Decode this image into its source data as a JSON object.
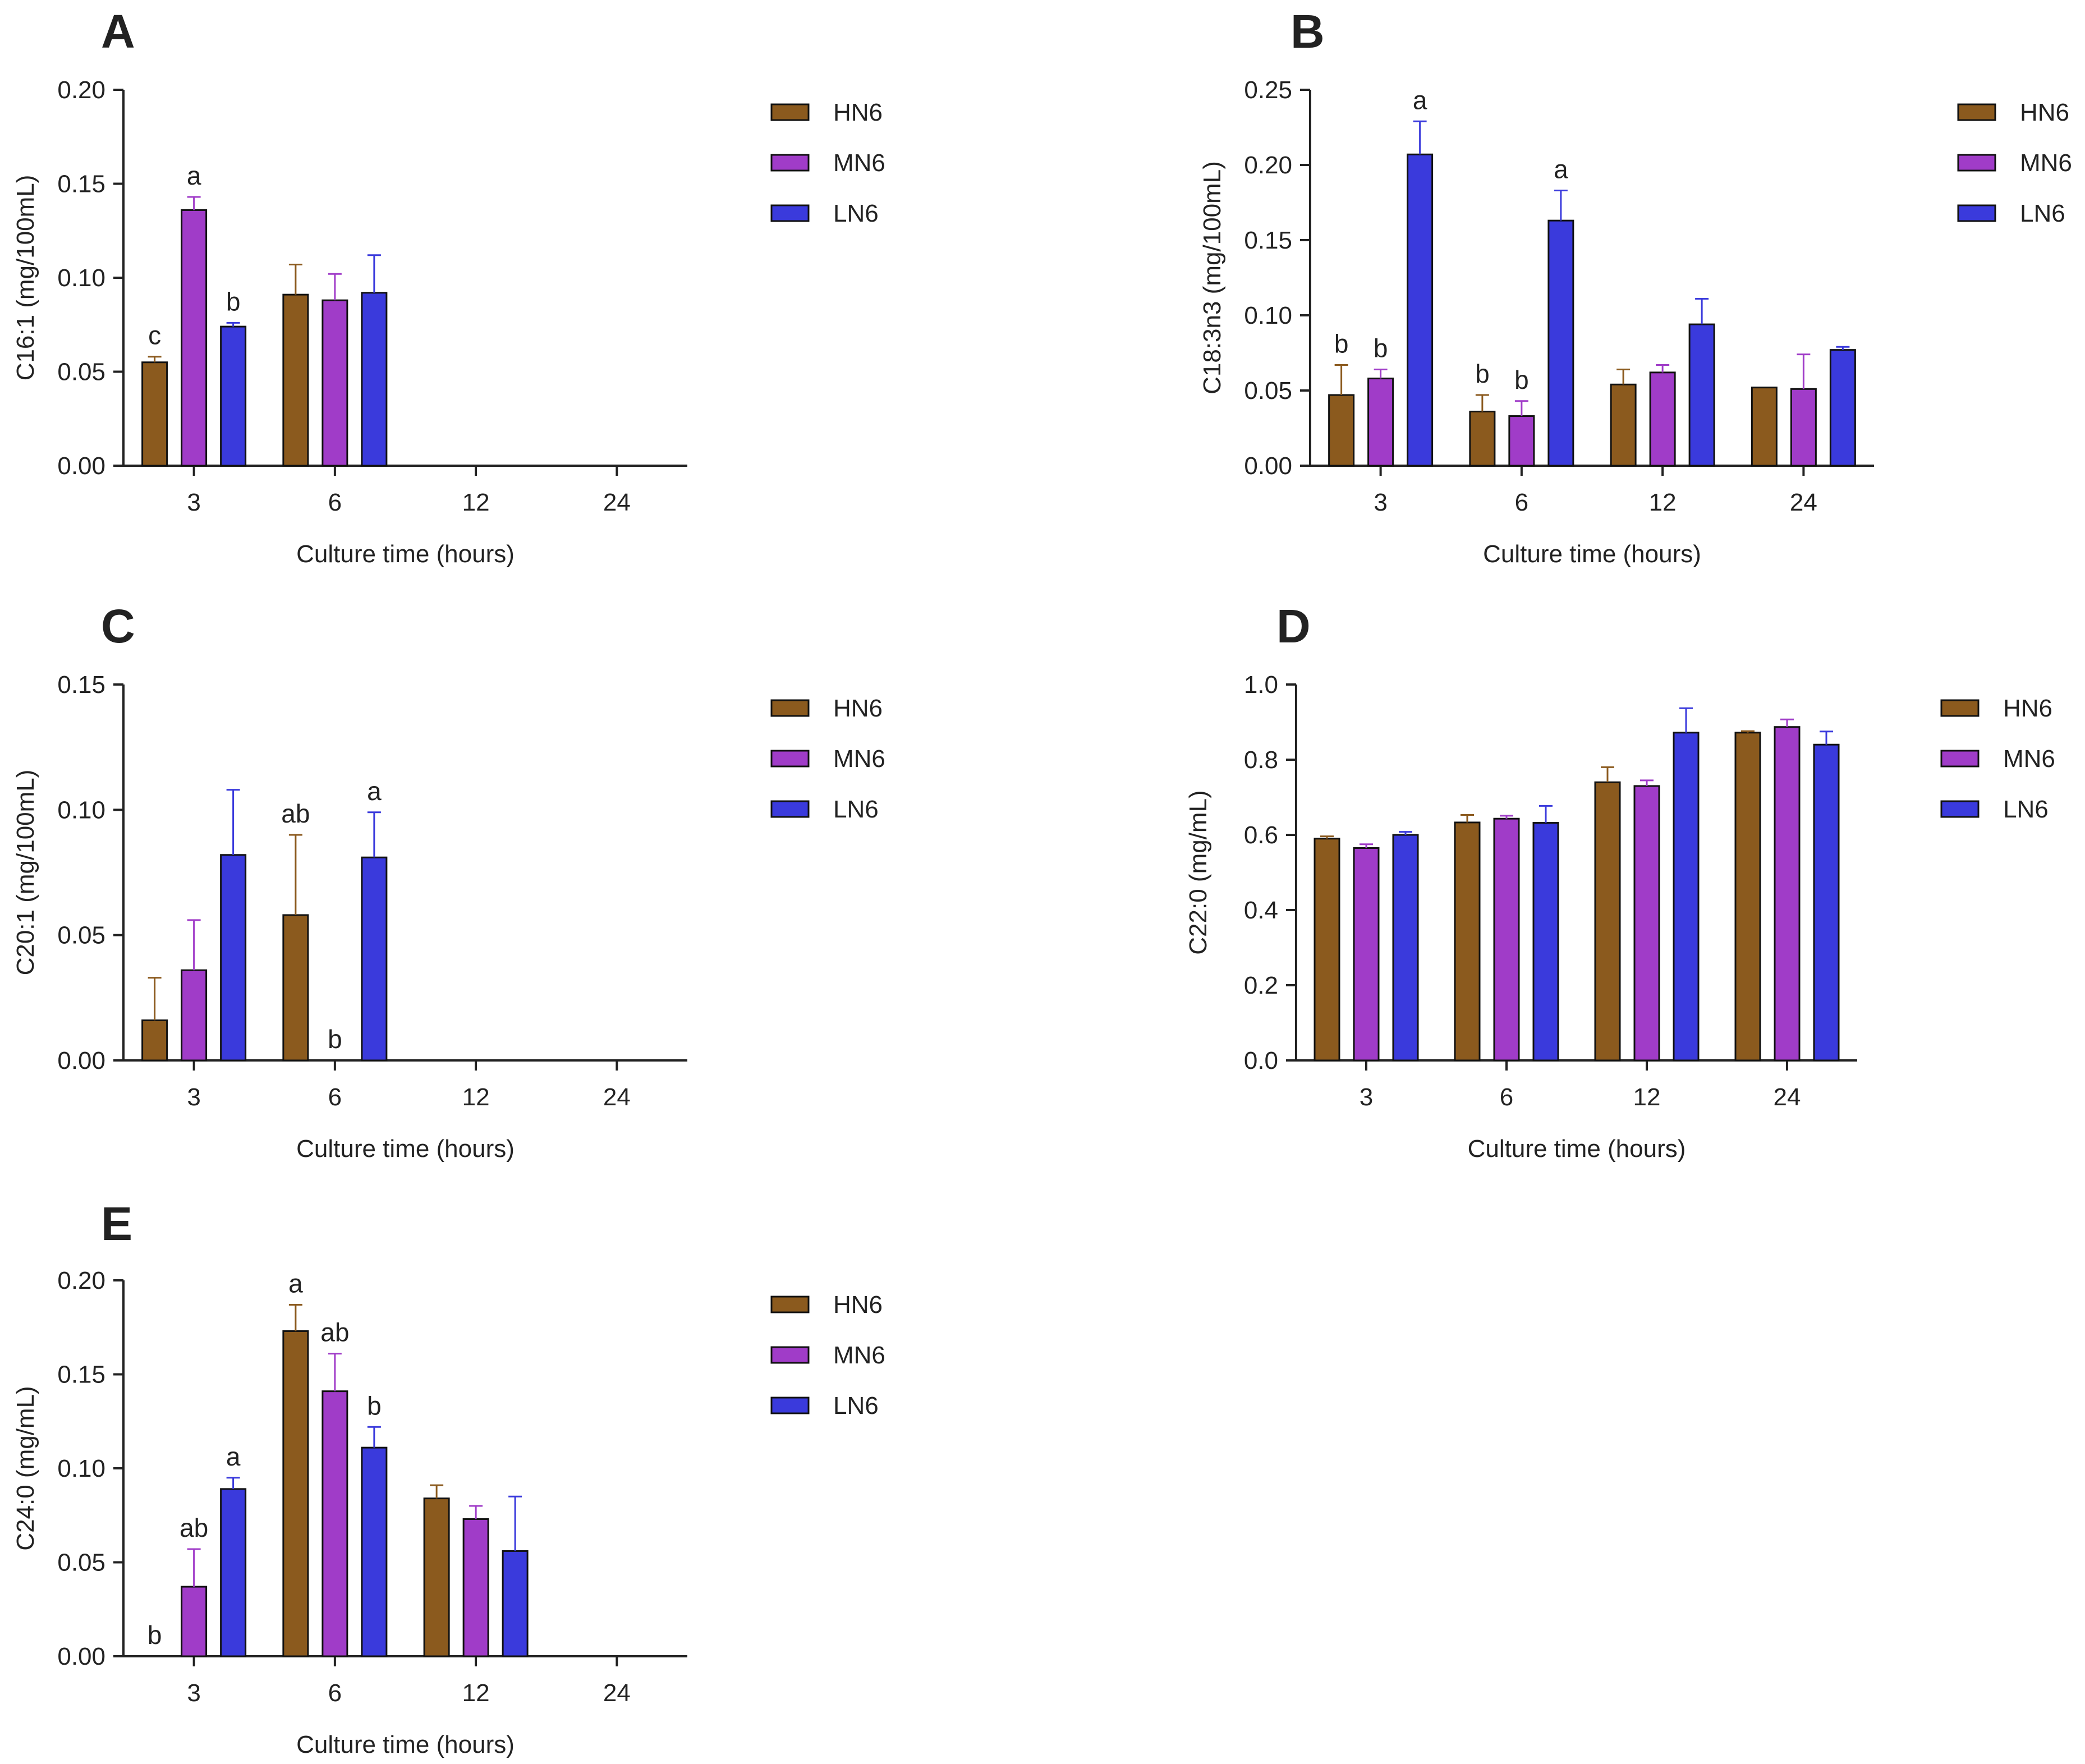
{
  "colors": {
    "HN6": "#8B5A1E",
    "MN6": "#A03CC8",
    "LN6": "#3A3ADC",
    "axis": "#222222"
  },
  "chart_data": [
    {
      "panel": "A",
      "type": "bar",
      "categories": [
        "3",
        "6",
        "12",
        "24"
      ],
      "xlabel": "Culture time (hours)",
      "ylabel": "C16:1 (mg/100mL)",
      "ylim": [
        0,
        0.2
      ],
      "yticks": [
        "0.00",
        "0.05",
        "0.10",
        "0.15",
        "0.20"
      ],
      "legend": "right",
      "series": [
        {
          "name": "HN6",
          "values": [
            0.055,
            0.091,
            null,
            null
          ],
          "errors": [
            0.003,
            0.016,
            null,
            null
          ],
          "labels": [
            "c",
            "",
            "",
            ""
          ]
        },
        {
          "name": "MN6",
          "values": [
            0.136,
            0.088,
            null,
            null
          ],
          "errors": [
            0.007,
            0.014,
            null,
            null
          ],
          "labels": [
            "a",
            "",
            "",
            ""
          ]
        },
        {
          "name": "LN6",
          "values": [
            0.074,
            0.092,
            null,
            null
          ],
          "errors": [
            0.002,
            0.02,
            null,
            null
          ],
          "labels": [
            "b",
            "",
            "",
            ""
          ]
        }
      ]
    },
    {
      "panel": "B",
      "type": "bar",
      "categories": [
        "3",
        "6",
        "12",
        "24"
      ],
      "xlabel": "Culture time (hours)",
      "ylabel": "C18:3n3 (mg/100mL)",
      "ylim": [
        0,
        0.25
      ],
      "yticks": [
        "0.00",
        "0.05",
        "0.10",
        "0.15",
        "0.20",
        "0.25"
      ],
      "legend": "right",
      "series": [
        {
          "name": "HN6",
          "values": [
            0.047,
            0.036,
            0.054,
            0.052
          ],
          "errors": [
            0.02,
            0.011,
            0.01,
            0.0
          ],
          "labels": [
            "b",
            "b",
            "",
            ""
          ]
        },
        {
          "name": "MN6",
          "values": [
            0.058,
            0.033,
            0.062,
            0.051
          ],
          "errors": [
            0.006,
            0.01,
            0.005,
            0.023
          ],
          "labels": [
            "b",
            "b",
            "",
            ""
          ]
        },
        {
          "name": "LN6",
          "values": [
            0.207,
            0.163,
            0.094,
            0.077
          ],
          "errors": [
            0.022,
            0.02,
            0.017,
            0.002
          ],
          "labels": [
            "a",
            "a",
            "",
            ""
          ]
        }
      ]
    },
    {
      "panel": "C",
      "type": "bar",
      "categories": [
        "3",
        "6",
        "12",
        "24"
      ],
      "xlabel": "Culture time (hours)",
      "ylabel": "C20:1 (mg/100mL)",
      "ylim": [
        0,
        0.15
      ],
      "yticks": [
        "0.00",
        "0.05",
        "0.10",
        "0.15"
      ],
      "legend": "right",
      "series": [
        {
          "name": "HN6",
          "values": [
            0.016,
            0.058,
            null,
            null
          ],
          "errors": [
            0.017,
            0.032,
            null,
            null
          ],
          "labels": [
            "",
            "ab",
            "",
            ""
          ]
        },
        {
          "name": "MN6",
          "values": [
            0.036,
            0.0,
            null,
            null
          ],
          "errors": [
            0.02,
            0.0,
            null,
            null
          ],
          "labels": [
            "",
            "b",
            "",
            ""
          ]
        },
        {
          "name": "LN6",
          "values": [
            0.082,
            0.081,
            null,
            null
          ],
          "errors": [
            0.026,
            0.018,
            null,
            null
          ],
          "labels": [
            "",
            "a",
            "",
            ""
          ]
        }
      ]
    },
    {
      "panel": "D",
      "type": "bar",
      "categories": [
        "3",
        "6",
        "12",
        "24"
      ],
      "xlabel": "Culture time (hours)",
      "ylabel": "C22:0 (mg/mL)",
      "ylim": [
        0,
        1.0
      ],
      "yticks": [
        "0.0",
        "0.2",
        "0.4",
        "0.6",
        "0.8",
        "1.0"
      ],
      "legend": "right",
      "series": [
        {
          "name": "HN6",
          "values": [
            0.59,
            0.633,
            0.74,
            0.872
          ],
          "errors": [
            0.006,
            0.02,
            0.04,
            0.004
          ],
          "labels": [
            "",
            "",
            "",
            ""
          ]
        },
        {
          "name": "MN6",
          "values": [
            0.565,
            0.643,
            0.73,
            0.887
          ],
          "errors": [
            0.01,
            0.008,
            0.015,
            0.02
          ],
          "labels": [
            "",
            "",
            "",
            ""
          ]
        },
        {
          "name": "LN6",
          "values": [
            0.6,
            0.632,
            0.872,
            0.84
          ],
          "errors": [
            0.008,
            0.045,
            0.065,
            0.035
          ],
          "labels": [
            "",
            "",
            "",
            ""
          ]
        }
      ]
    },
    {
      "panel": "E",
      "type": "bar",
      "categories": [
        "3",
        "6",
        "12",
        "24"
      ],
      "xlabel": "Culture time (hours)",
      "ylabel": "C24:0 (mg/mL)",
      "ylim": [
        0,
        0.2
      ],
      "yticks": [
        "0.00",
        "0.05",
        "0.10",
        "0.15",
        "0.20"
      ],
      "legend": "right",
      "series": [
        {
          "name": "HN6",
          "values": [
            0.0,
            0.173,
            0.084,
            null
          ],
          "errors": [
            0.0,
            0.014,
            0.007,
            null
          ],
          "labels": [
            "b",
            "a",
            "",
            ""
          ]
        },
        {
          "name": "MN6",
          "values": [
            0.037,
            0.141,
            0.073,
            null
          ],
          "errors": [
            0.02,
            0.02,
            0.007,
            null
          ],
          "labels": [
            "ab",
            "ab",
            "",
            ""
          ]
        },
        {
          "name": "LN6",
          "values": [
            0.089,
            0.111,
            0.056,
            null
          ],
          "errors": [
            0.006,
            0.011,
            0.029,
            null
          ],
          "labels": [
            "a",
            "b",
            "",
            ""
          ]
        }
      ]
    }
  ]
}
